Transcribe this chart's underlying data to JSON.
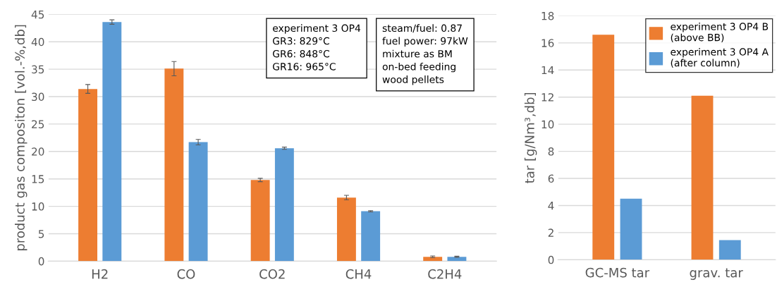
{
  "chart_data": [
    {
      "type": "bar",
      "ylabel": "product gas compositon [vol.-%,db]",
      "categories": [
        "H2",
        "CO",
        "CO2",
        "CH4",
        "C2H4"
      ],
      "series": [
        {
          "color": "#ed7d31",
          "values": [
            31.4,
            35.1,
            14.8,
            11.6,
            0.8
          ],
          "errors": [
            0.8,
            1.3,
            0.3,
            0.4,
            0.15
          ]
        },
        {
          "color": "#5b9bd5",
          "values": [
            43.6,
            21.7,
            20.6,
            9.1,
            0.8
          ],
          "errors": [
            0.4,
            0.5,
            0.2,
            0.1,
            0.1
          ]
        }
      ],
      "ylim": [
        0,
        45
      ],
      "yticks": [
        0,
        5,
        10,
        15,
        20,
        25,
        30,
        35,
        40,
        45
      ],
      "grid": "y",
      "legend": false,
      "annotations": [
        "experiment 3 OP4\nGR3: 829°C\nGR6: 848°C\nGR16: 965°C",
        "steam/fuel: 0.87\nfuel power: 97kW\nmixture as BM\non-bed feeding\nwood pellets"
      ]
    },
    {
      "type": "bar",
      "ylabel": "tar [g/Nm³,db]",
      "categories": [
        "GC-MS tar",
        "grav. tar"
      ],
      "series": [
        {
          "name": "experiment 3 OP4 B\n(above BB)",
          "color": "#ed7d31",
          "values": [
            16.6,
            12.1
          ]
        },
        {
          "name": "experiment 3 OP4 A\n(after column)",
          "color": "#5b9bd5",
          "values": [
            4.5,
            1.45
          ]
        }
      ],
      "ylim": [
        0,
        18
      ],
      "yticks": [
        0,
        2,
        4,
        6,
        8,
        10,
        12,
        14,
        16,
        18
      ],
      "grid": "y",
      "legend": "top right"
    }
  ]
}
